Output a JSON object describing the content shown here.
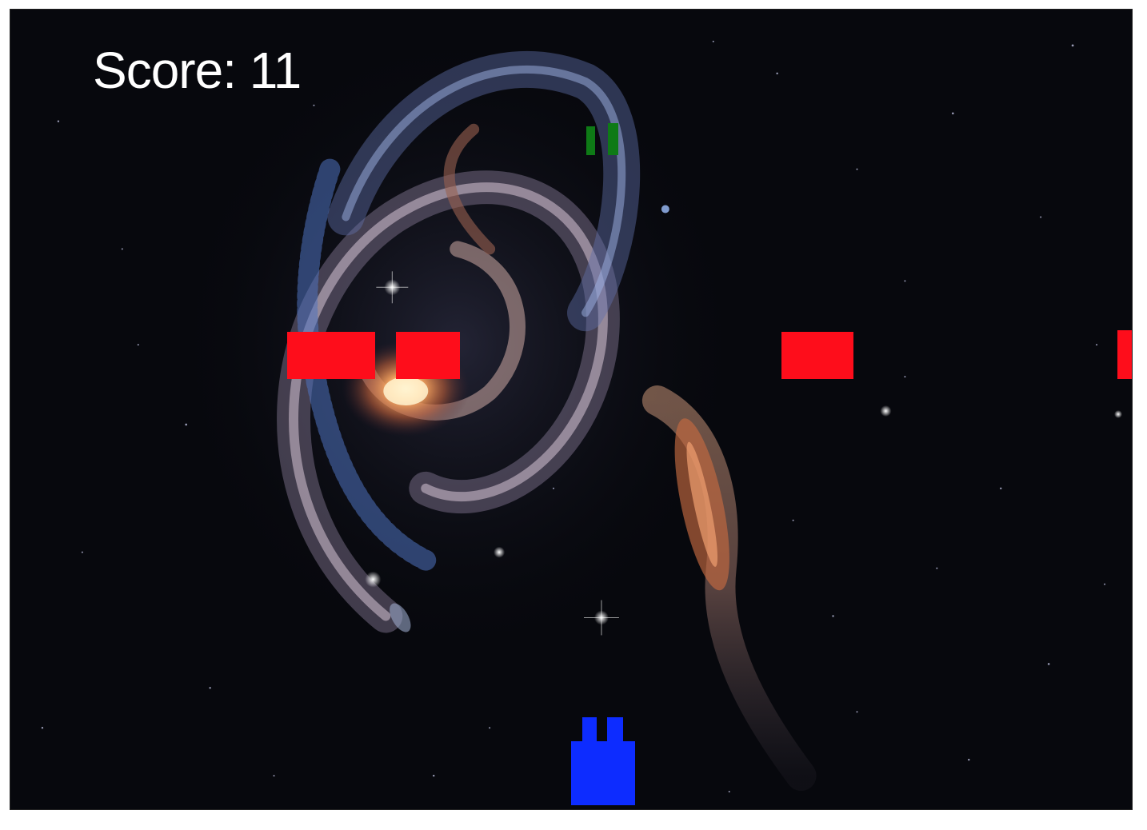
{
  "hud": {
    "score_text": "Score: 11"
  },
  "colors": {
    "background": "#07080d",
    "enemy_block": "#fe0d1b",
    "bullet": "#0e7a16",
    "player": "#0d2cff",
    "score_text": "#ffffff"
  },
  "scene": {
    "background_image": "galaxy-pair-space-image",
    "enemy_count": 4,
    "bullet_count": 2
  }
}
